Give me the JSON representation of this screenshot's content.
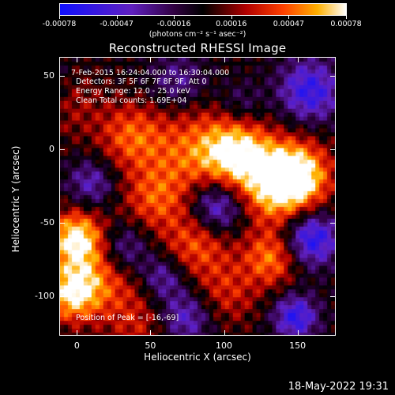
{
  "colorbar": {
    "tick_labels": [
      "-0.00078",
      "-0.00047",
      "-0.00016",
      "0.00016",
      "0.00047",
      "0.00078"
    ],
    "units": "(photons cm⁻² s⁻¹ asec⁻²)"
  },
  "title": "Reconstructed RHESSI Image",
  "annotations": {
    "time_range": "7-Feb-2015 16:24:04.000 to 16:30:04.000",
    "detectors": "Detectors: 3F 5F 6F 7F 8F 9F, Att 0",
    "energy": "Energy Range: 12.0 - 25.0 keV",
    "clean": "Clean     Total counts: 1.69E+04",
    "peak": "Position of Peak = [-16,-69]"
  },
  "chart_data": {
    "type": "heatmap",
    "xlabel": "Heliocentric X (arcsec)",
    "ylabel": "Heliocentric Y (arcsec)",
    "x_ticks": [
      "0",
      "50",
      "100",
      "150"
    ],
    "y_ticks": [
      "50",
      "0",
      "-50",
      "-100"
    ],
    "xlim": [
      -12,
      176
    ],
    "ylim": [
      -127,
      63
    ],
    "colorbar_range": [
      -0.00078,
      0.00078
    ]
  },
  "footer": "18-May-2022 19:31",
  "colors": {
    "background": "#000000",
    "foreground": "#ffffff"
  }
}
